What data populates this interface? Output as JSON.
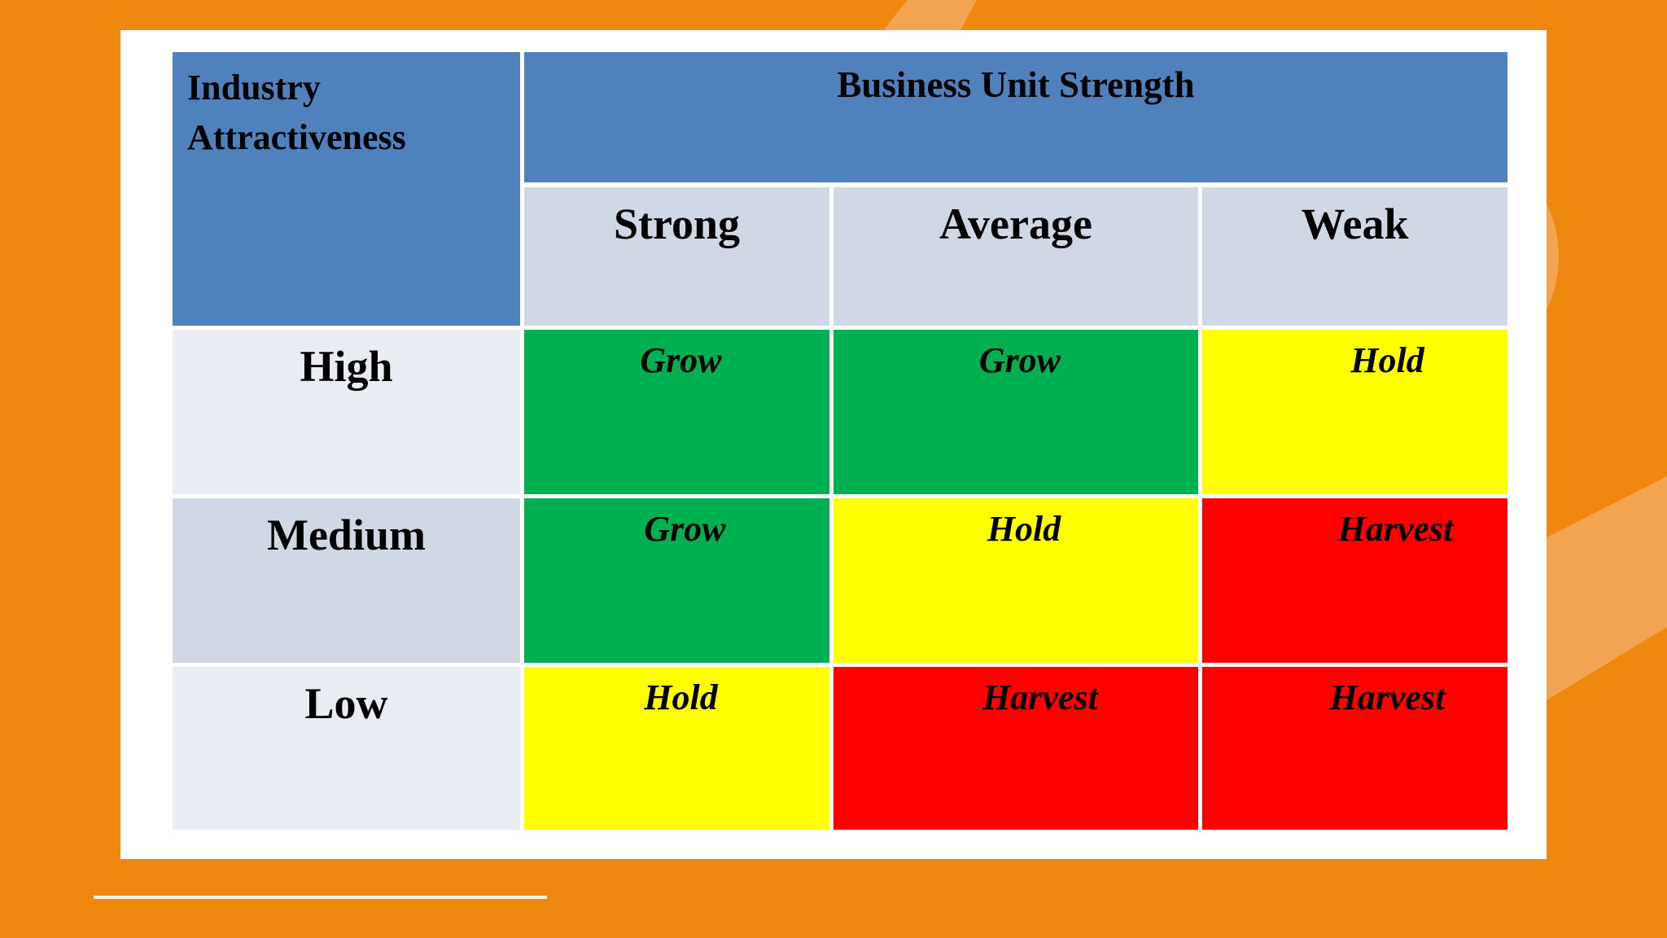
{
  "matrix": {
    "corner_label": "Industry Attractiveness",
    "column_group_label": "Business Unit Strength",
    "columns": [
      "Strong",
      "Average",
      "Weak"
    ],
    "rows": [
      {
        "label": "High",
        "cells": [
          {
            "text": "Grow",
            "color": "#00b050"
          },
          {
            "text": "Grow",
            "color": "#00b050"
          },
          {
            "text": "Hold",
            "color": "#ffff00"
          }
        ]
      },
      {
        "label": "Medium",
        "cells": [
          {
            "text": "Grow",
            "color": "#00b050"
          },
          {
            "text": "Hold",
            "color": "#ffff00"
          },
          {
            "text": "Harvest",
            "color": "#ff0000"
          }
        ]
      },
      {
        "label": "Low",
        "cells": [
          {
            "text": "Hold",
            "color": "#ffff00"
          },
          {
            "text": "Harvest",
            "color": "#ff0000"
          },
          {
            "text": "Harvest",
            "color": "#ff0000"
          }
        ]
      }
    ]
  },
  "colors": {
    "background": "#ee870e",
    "header_blue": "#4f81bd",
    "grow": "#00b050",
    "hold": "#ffff00",
    "harvest": "#ff0000"
  }
}
